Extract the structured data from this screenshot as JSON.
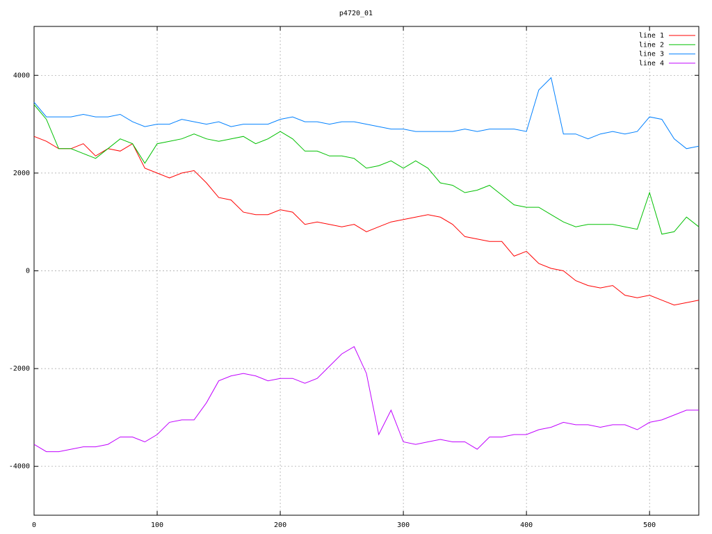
{
  "chart_data": {
    "type": "line",
    "title": "p4720_01",
    "x": [
      0,
      10,
      20,
      30,
      40,
      50,
      60,
      70,
      80,
      90,
      100,
      110,
      120,
      130,
      140,
      150,
      160,
      170,
      180,
      190,
      200,
      210,
      220,
      230,
      240,
      250,
      260,
      270,
      280,
      290,
      300,
      310,
      320,
      330,
      340,
      350,
      360,
      370,
      380,
      390,
      400,
      410,
      420,
      430,
      440,
      450,
      460,
      470,
      480,
      490,
      500,
      510,
      520,
      530,
      540
    ],
    "series": [
      {
        "name": "line 1",
        "color": "#ff0000",
        "values": [
          2750,
          2650,
          2500,
          2500,
          2600,
          2350,
          2500,
          2450,
          2600,
          2100,
          2000,
          1900,
          2000,
          2050,
          1800,
          1500,
          1450,
          1200,
          1150,
          1150,
          1250,
          1200,
          950,
          1000,
          950,
          900,
          950,
          800,
          900,
          1000,
          1050,
          1100,
          1150,
          1100,
          950,
          700,
          650,
          600,
          600,
          300,
          400,
          150,
          50,
          0,
          -200,
          -300,
          -350,
          -300,
          -500,
          -550,
          -500,
          -600,
          -700,
          -650,
          -600
        ]
      },
      {
        "name": "line 2",
        "color": "#00c000",
        "values": [
          3400,
          3100,
          2500,
          2500,
          2400,
          2300,
          2500,
          2700,
          2600,
          2200,
          2600,
          2650,
          2700,
          2800,
          2700,
          2650,
          2700,
          2750,
          2600,
          2700,
          2850,
          2700,
          2450,
          2450,
          2350,
          2350,
          2300,
          2100,
          2150,
          2250,
          2100,
          2250,
          2100,
          1800,
          1750,
          1600,
          1650,
          1750,
          1550,
          1350,
          1300,
          1300,
          1150,
          1000,
          900,
          950,
          950,
          950,
          900,
          850,
          1600,
          750,
          800,
          1100,
          900
        ]
      },
      {
        "name": "line 3",
        "color": "#0080ff",
        "values": [
          3450,
          3150,
          3150,
          3150,
          3200,
          3150,
          3150,
          3200,
          3050,
          2950,
          3000,
          3000,
          3100,
          3050,
          3000,
          3050,
          2950,
          3000,
          3000,
          3000,
          3100,
          3150,
          3050,
          3050,
          3000,
          3050,
          3050,
          3000,
          2950,
          2900,
          2900,
          2850,
          2850,
          2850,
          2850,
          2900,
          2850,
          2900,
          2900,
          2900,
          2850,
          3700,
          3950,
          2800,
          2800,
          2700,
          2800,
          2850,
          2800,
          2850,
          3150,
          3100,
          2700,
          2500,
          2550
        ]
      },
      {
        "name": "line 4",
        "color": "#c000ff",
        "values": [
          -3550,
          -3700,
          -3700,
          -3650,
          -3600,
          -3600,
          -3550,
          -3400,
          -3400,
          -3500,
          -3350,
          -3100,
          -3050,
          -3050,
          -2700,
          -2250,
          -2150,
          -2100,
          -2150,
          -2250,
          -2200,
          -2200,
          -2300,
          -2200,
          -1950,
          -1700,
          -1550,
          -2100,
          -3350,
          -2850,
          -3500,
          -3550,
          -3500,
          -3450,
          -3500,
          -3500,
          -3650,
          -3400,
          -3400,
          -3350,
          -3350,
          -3250,
          -3200,
          -3100,
          -3150,
          -3150,
          -3200,
          -3150,
          -3150,
          -3250,
          -3100,
          -3050,
          -2950,
          -2850,
          -2850
        ]
      }
    ],
    "xlim": [
      0,
      540
    ],
    "xticks": [
      0,
      100,
      200,
      300,
      400,
      500
    ],
    "ylim": [
      -5000,
      5000
    ],
    "yticks": [
      -4000,
      -2000,
      0,
      2000,
      4000
    ],
    "grid": true,
    "legend": "top-right"
  }
}
